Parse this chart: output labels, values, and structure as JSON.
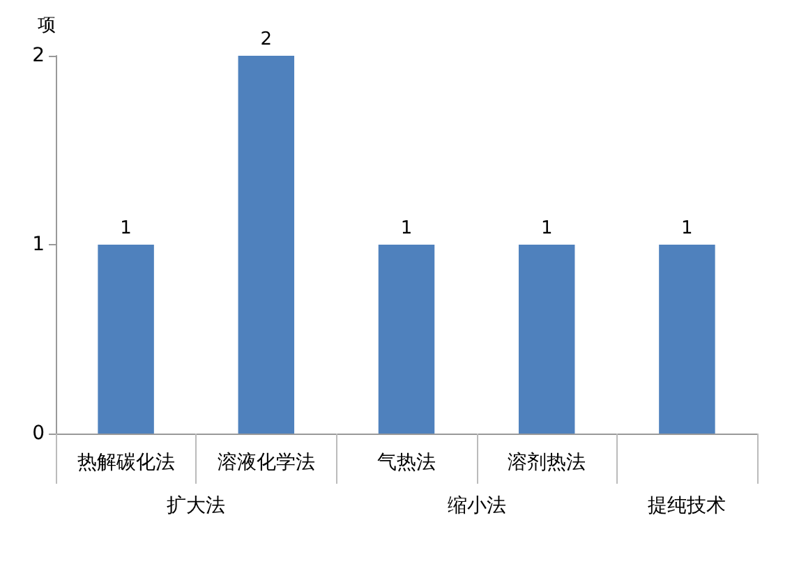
{
  "chart_data": {
    "type": "bar",
    "ylabel": "项",
    "categories": [
      "热解碳化法",
      "溶液化学法",
      "气热法",
      "溶剂热法",
      null
    ],
    "values": [
      1,
      2,
      1,
      1,
      1
    ],
    "color": "#4f81bd",
    "ylim": [
      0,
      2
    ],
    "yticks": [
      0,
      1,
      2
    ],
    "grid": false,
    "data_labels": true,
    "annotations": [
      "扩大法",
      "缩小法",
      "提纯技术"
    ]
  }
}
